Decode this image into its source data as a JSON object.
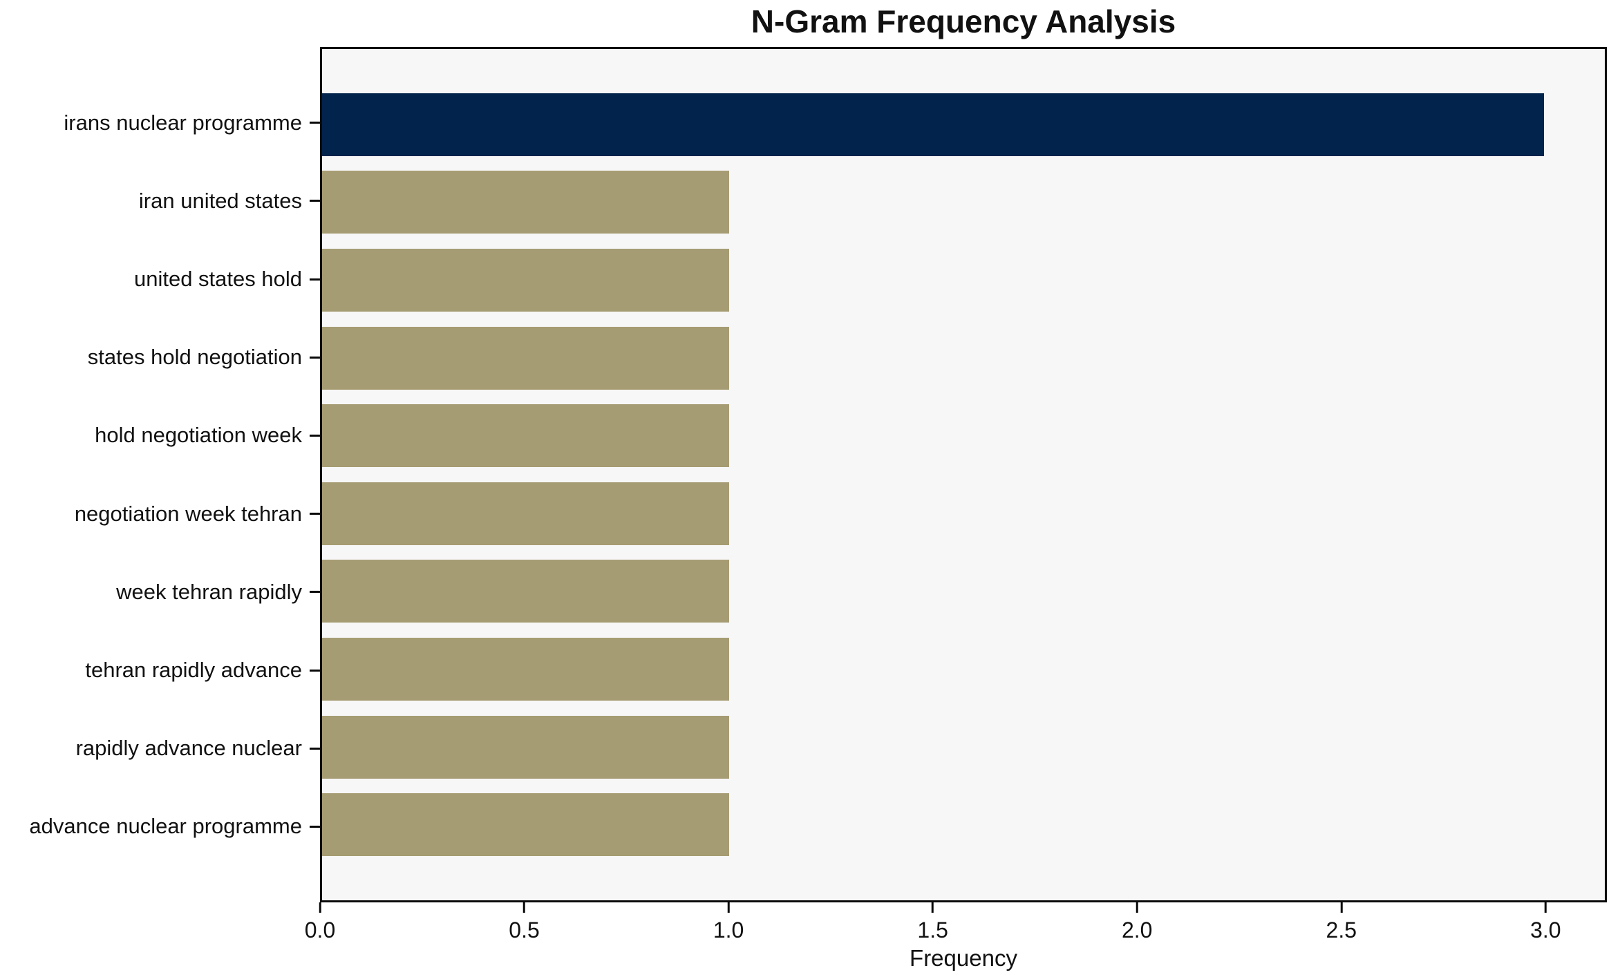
{
  "chart_data": {
    "type": "bar",
    "orientation": "horizontal",
    "title": "N-Gram Frequency Analysis",
    "xlabel": "Frequency",
    "ylabel": "",
    "categories": [
      "irans nuclear programme",
      "iran united states",
      "united states hold",
      "states hold negotiation",
      "hold negotiation week",
      "negotiation week tehran",
      "week tehran rapidly",
      "tehran rapidly advance",
      "rapidly advance nuclear",
      "advance nuclear programme"
    ],
    "values": [
      3,
      1,
      1,
      1,
      1,
      1,
      1,
      1,
      1,
      1
    ],
    "bar_colors": [
      "#02234B",
      "#A69C73",
      "#A69C73",
      "#A69C73",
      "#A69C73",
      "#A69C73",
      "#A69C73",
      "#A69C73",
      "#A69C73",
      "#A69C73"
    ],
    "xlim": [
      0,
      3.15
    ],
    "xticks": [
      0.0,
      0.5,
      1.0,
      1.5,
      2.0,
      2.5,
      3.0
    ],
    "xtick_labels": [
      "0.0",
      "0.5",
      "1.0",
      "1.5",
      "2.0",
      "2.5",
      "3.0"
    ],
    "grid": false,
    "legend": null,
    "colors": {
      "highlight_bar": "#02234B",
      "default_bar": "#A69C73",
      "plot_background": "#F7F7F7",
      "figure_background": "#FFFFFF",
      "spine": "#0A0A0A",
      "text": "#111111"
    }
  }
}
